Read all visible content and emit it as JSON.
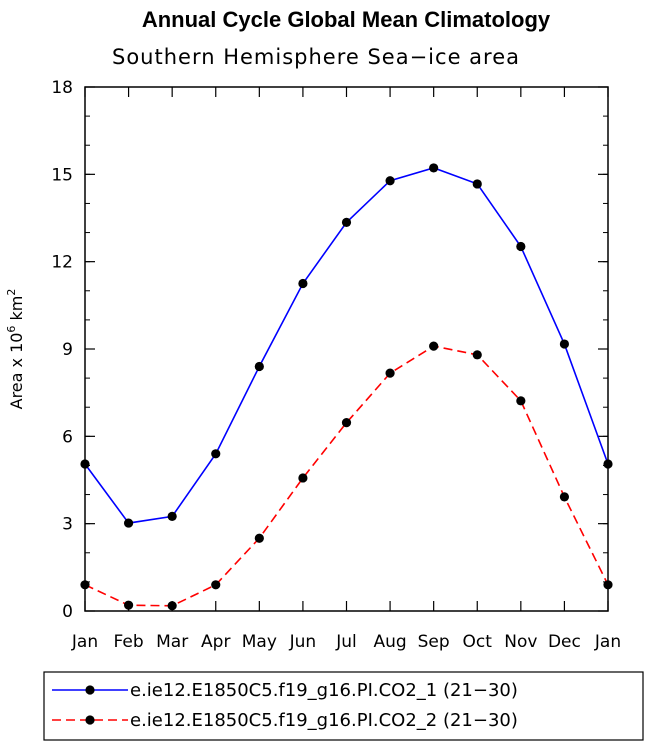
{
  "chart_data": {
    "type": "line",
    "title": "Annual Cycle Global Mean Climatology",
    "subtitle": "Southern Hemisphere Sea−ice area",
    "ylabel_prefix": "Area x 10",
    "ylabel_exp": "6",
    "ylabel_unit": " km",
    "ylabel_unit_exp": "2",
    "categories": [
      "Jan",
      "Feb",
      "Mar",
      "Apr",
      "May",
      "Jun",
      "Jul",
      "Aug",
      "Sep",
      "Oct",
      "Nov",
      "Dec",
      "Jan"
    ],
    "ylim": [
      0,
      18
    ],
    "yticks": [
      0,
      3,
      6,
      9,
      12,
      15,
      18
    ],
    "legend_position": "bottom",
    "series": [
      {
        "name": "e.ie12.E1850C5.f19_g16.PI.CO2_1 (21−30)",
        "color": "#0000ff",
        "dash": "solid",
        "values": [
          5.05,
          3.02,
          3.25,
          5.4,
          8.4,
          11.25,
          13.35,
          14.78,
          15.22,
          14.67,
          12.52,
          9.17,
          5.05
        ]
      },
      {
        "name": "e.ie12.E1850C5.f19_g16.PI.CO2_2 (21−30)",
        "color": "#ff0000",
        "dash": "dashed",
        "values": [
          0.9,
          0.2,
          0.18,
          0.9,
          2.5,
          4.57,
          6.47,
          8.17,
          9.1,
          8.8,
          7.22,
          3.92,
          0.9
        ]
      }
    ]
  }
}
